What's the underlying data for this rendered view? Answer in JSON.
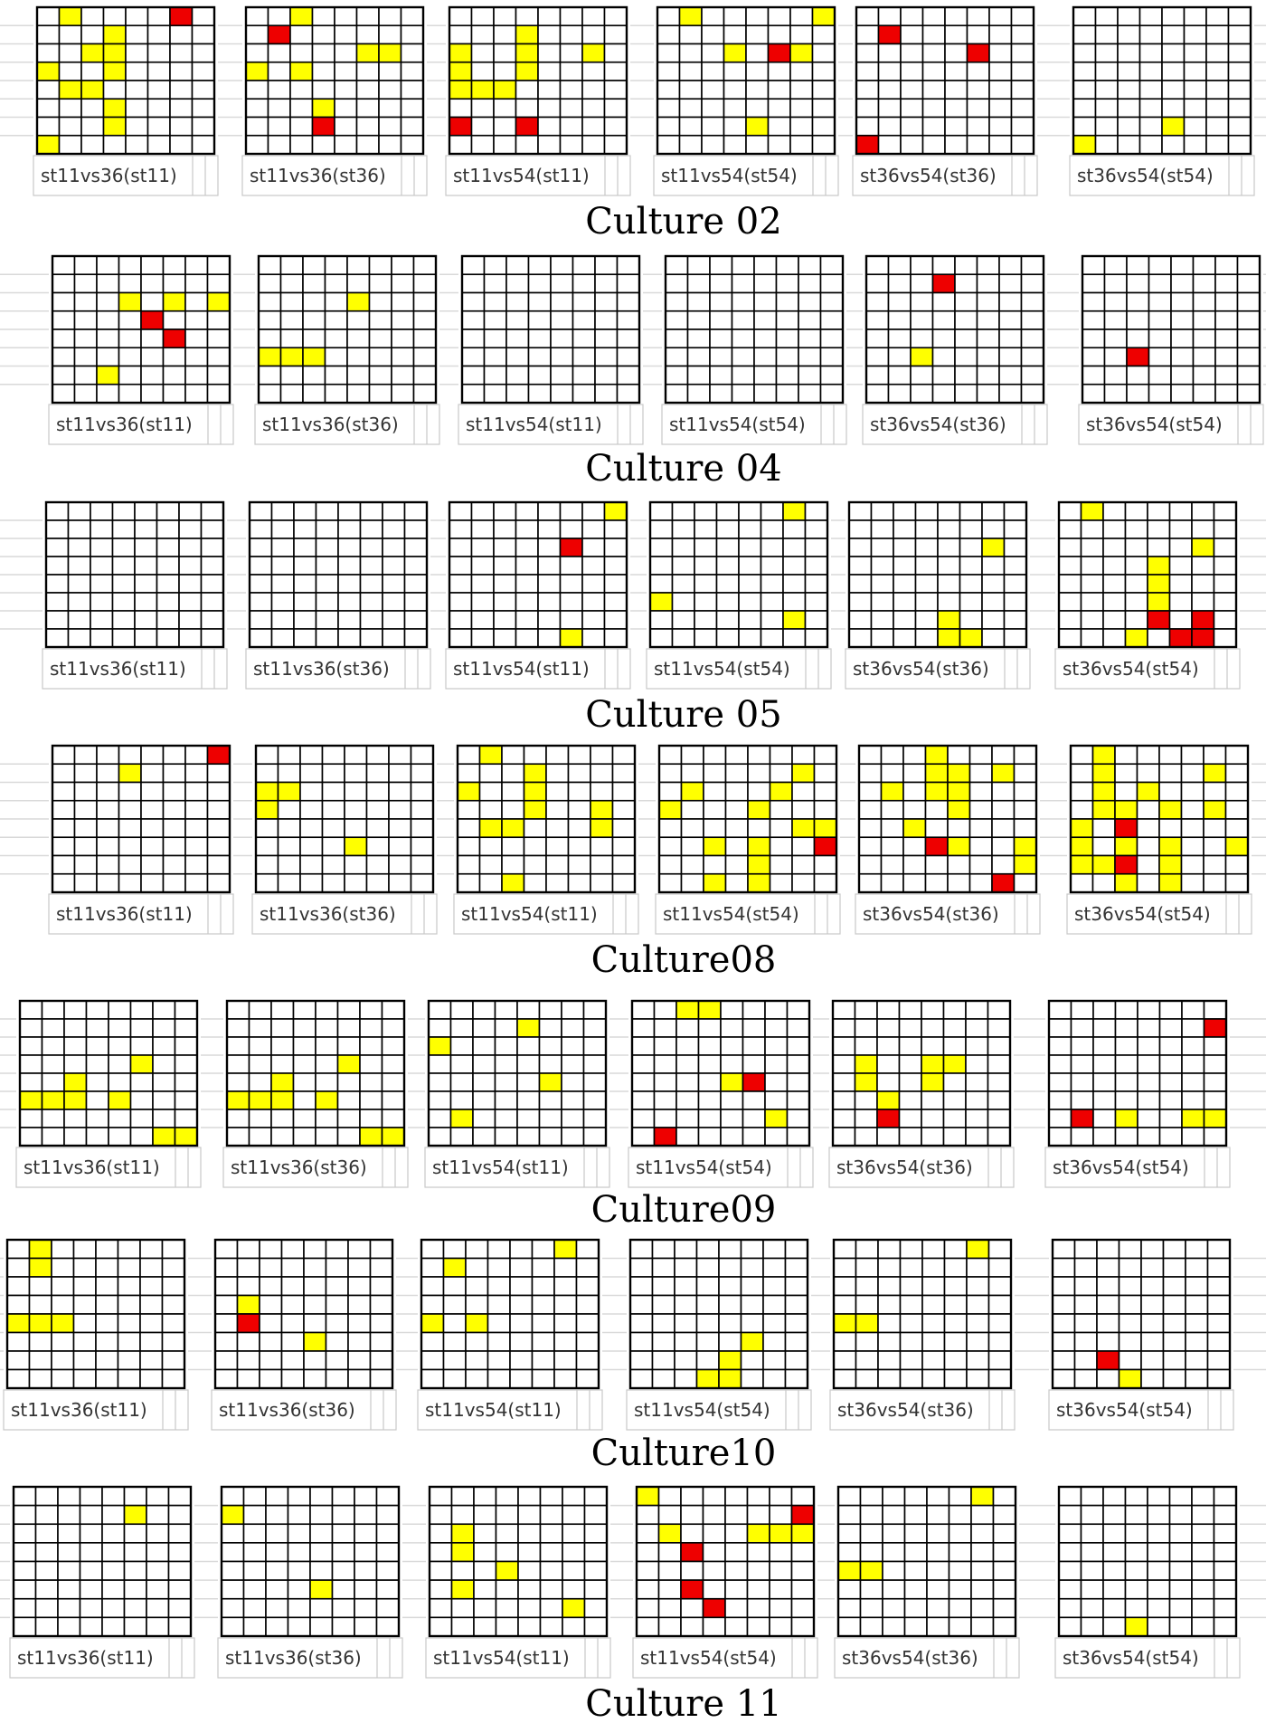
{
  "colors": {
    "empty": "#ffffff",
    "yellow": "#ffff00",
    "red": "#ee0000",
    "grid_line": "#000000",
    "label_border": "#c8c8c8"
  },
  "grid": {
    "rows": 8,
    "cols": 8
  },
  "cultures": [
    {
      "title": "Culture 02",
      "panels": [
        {
          "label": "st11vs36(st11)",
          "yellow": [
            [
              0,
              1
            ],
            [
              1,
              3
            ],
            [
              2,
              2
            ],
            [
              2,
              3
            ],
            [
              3,
              0
            ],
            [
              3,
              3
            ],
            [
              4,
              1
            ],
            [
              4,
              2
            ],
            [
              5,
              3
            ],
            [
              6,
              3
            ],
            [
              7,
              0
            ]
          ],
          "red": [
            [
              0,
              6
            ]
          ]
        },
        {
          "label": "st11vs36(st36)",
          "yellow": [
            [
              0,
              2
            ],
            [
              2,
              5
            ],
            [
              2,
              6
            ],
            [
              3,
              0
            ],
            [
              3,
              2
            ],
            [
              5,
              3
            ]
          ],
          "red": [
            [
              1,
              1
            ],
            [
              6,
              3
            ]
          ]
        },
        {
          "label": "st11vs54(st11)",
          "yellow": [
            [
              1,
              3
            ],
            [
              2,
              0
            ],
            [
              2,
              3
            ],
            [
              2,
              6
            ],
            [
              3,
              0
            ],
            [
              3,
              3
            ],
            [
              4,
              0
            ],
            [
              4,
              1
            ],
            [
              4,
              2
            ]
          ],
          "red": [
            [
              6,
              0
            ],
            [
              6,
              3
            ]
          ]
        },
        {
          "label": "st11vs54(st54)",
          "yellow": [
            [
              0,
              1
            ],
            [
              0,
              7
            ],
            [
              2,
              3
            ],
            [
              2,
              6
            ],
            [
              6,
              4
            ]
          ],
          "red": [
            [
              2,
              5
            ]
          ]
        },
        {
          "label": "st36vs54(st36)",
          "yellow": [],
          "red": [
            [
              1,
              1
            ],
            [
              2,
              5
            ],
            [
              7,
              0
            ]
          ]
        },
        {
          "label": "st36vs54(st54)",
          "yellow": [
            [
              6,
              4
            ],
            [
              7,
              0
            ]
          ],
          "red": []
        }
      ]
    },
    {
      "title": "Culture 04",
      "panels": [
        {
          "label": "st11vs36(st11)",
          "yellow": [
            [
              2,
              3
            ],
            [
              2,
              5
            ],
            [
              2,
              7
            ],
            [
              6,
              2
            ]
          ],
          "red": [
            [
              3,
              4
            ],
            [
              4,
              5
            ]
          ]
        },
        {
          "label": "st11vs36(st36)",
          "yellow": [
            [
              2,
              4
            ],
            [
              5,
              0
            ],
            [
              5,
              1
            ],
            [
              5,
              2
            ]
          ],
          "red": []
        },
        {
          "label": "st11vs54(st11)",
          "yellow": [],
          "red": []
        },
        {
          "label": "st11vs54(st54)",
          "yellow": [],
          "red": []
        },
        {
          "label": "st36vs54(st36)",
          "yellow": [
            [
              5,
              2
            ]
          ],
          "red": [
            [
              1,
              3
            ]
          ]
        },
        {
          "label": "st36vs54(st54)",
          "yellow": [],
          "red": [
            [
              5,
              2
            ]
          ]
        }
      ]
    },
    {
      "title": "Culture 05",
      "panels": [
        {
          "label": "st11vs36(st11)",
          "yellow": [],
          "red": []
        },
        {
          "label": "st11vs36(st36)",
          "yellow": [],
          "red": []
        },
        {
          "label": "st11vs54(st11)",
          "yellow": [
            [
              0,
              7
            ],
            [
              7,
              5
            ]
          ],
          "red": [
            [
              2,
              5
            ]
          ]
        },
        {
          "label": "st11vs54(st54)",
          "yellow": [
            [
              0,
              6
            ],
            [
              5,
              0
            ],
            [
              6,
              6
            ]
          ],
          "red": []
        },
        {
          "label": "st36vs54(st36)",
          "yellow": [
            [
              2,
              6
            ],
            [
              6,
              4
            ],
            [
              7,
              4
            ],
            [
              7,
              5
            ]
          ],
          "red": []
        },
        {
          "label": "st36vs54(st54)",
          "yellow": [
            [
              0,
              1
            ],
            [
              2,
              6
            ],
            [
              3,
              4
            ],
            [
              4,
              4
            ],
            [
              5,
              4
            ],
            [
              7,
              3
            ]
          ],
          "red": [
            [
              6,
              4
            ],
            [
              6,
              6
            ],
            [
              7,
              5
            ],
            [
              7,
              6
            ]
          ]
        }
      ]
    },
    {
      "title": "Culture08",
      "panels": [
        {
          "label": "st11vs36(st11)",
          "yellow": [
            [
              1,
              3
            ]
          ],
          "red": [
            [
              0,
              7
            ]
          ]
        },
        {
          "label": "st11vs36(st36)",
          "yellow": [
            [
              2,
              0
            ],
            [
              2,
              1
            ],
            [
              3,
              0
            ],
            [
              5,
              4
            ]
          ],
          "red": []
        },
        {
          "label": "st11vs54(st11)",
          "yellow": [
            [
              0,
              1
            ],
            [
              1,
              3
            ],
            [
              2,
              0
            ],
            [
              2,
              3
            ],
            [
              3,
              3
            ],
            [
              3,
              6
            ],
            [
              4,
              1
            ],
            [
              4,
              2
            ],
            [
              4,
              6
            ],
            [
              7,
              2
            ]
          ],
          "red": []
        },
        {
          "label": "st11vs54(st54)",
          "yellow": [
            [
              1,
              6
            ],
            [
              2,
              1
            ],
            [
              2,
              5
            ],
            [
              3,
              0
            ],
            [
              3,
              4
            ],
            [
              4,
              6
            ],
            [
              4,
              7
            ],
            [
              5,
              2
            ],
            [
              5,
              4
            ],
            [
              6,
              4
            ],
            [
              7,
              2
            ],
            [
              7,
              4
            ]
          ],
          "red": [
            [
              5,
              7
            ]
          ]
        },
        {
          "label": "st36vs54(st36)",
          "yellow": [
            [
              0,
              3
            ],
            [
              1,
              3
            ],
            [
              1,
              4
            ],
            [
              1,
              6
            ],
            [
              2,
              1
            ],
            [
              2,
              3
            ],
            [
              2,
              4
            ],
            [
              3,
              4
            ],
            [
              4,
              2
            ],
            [
              5,
              4
            ],
            [
              5,
              7
            ],
            [
              6,
              7
            ]
          ],
          "red": [
            [
              5,
              3
            ],
            [
              7,
              6
            ]
          ]
        },
        {
          "label": "st36vs54(st54)",
          "yellow": [
            [
              0,
              1
            ],
            [
              1,
              1
            ],
            [
              1,
              6
            ],
            [
              2,
              1
            ],
            [
              2,
              3
            ],
            [
              3,
              1
            ],
            [
              3,
              2
            ],
            [
              3,
              4
            ],
            [
              3,
              6
            ],
            [
              4,
              0
            ],
            [
              4,
              2
            ],
            [
              5,
              0
            ],
            [
              5,
              2
            ],
            [
              5,
              4
            ],
            [
              5,
              7
            ],
            [
              6,
              0
            ],
            [
              6,
              1
            ],
            [
              6,
              4
            ],
            [
              7,
              2
            ],
            [
              7,
              4
            ]
          ],
          "red": [
            [
              4,
              2
            ],
            [
              6,
              2
            ]
          ]
        }
      ]
    },
    {
      "title": "Culture09",
      "panels": [
        {
          "label": "st11vs36(st11)",
          "yellow": [
            [
              3,
              5
            ],
            [
              4,
              2
            ],
            [
              5,
              0
            ],
            [
              5,
              1
            ],
            [
              5,
              2
            ],
            [
              5,
              4
            ],
            [
              7,
              6
            ],
            [
              7,
              7
            ]
          ],
          "red": []
        },
        {
          "label": "st11vs36(st36)",
          "yellow": [
            [
              3,
              5
            ],
            [
              4,
              2
            ],
            [
              5,
              0
            ],
            [
              5,
              1
            ],
            [
              5,
              2
            ],
            [
              5,
              4
            ],
            [
              7,
              6
            ],
            [
              7,
              7
            ]
          ],
          "red": []
        },
        {
          "label": "st11vs54(st11)",
          "yellow": [
            [
              1,
              4
            ],
            [
              2,
              0
            ],
            [
              4,
              5
            ],
            [
              6,
              1
            ]
          ],
          "red": []
        },
        {
          "label": "st11vs54(st54)",
          "yellow": [
            [
              0,
              2
            ],
            [
              0,
              3
            ],
            [
              4,
              4
            ],
            [
              6,
              6
            ]
          ],
          "red": [
            [
              4,
              5
            ],
            [
              7,
              1
            ]
          ]
        },
        {
          "label": "st36vs54(st36)",
          "yellow": [
            [
              3,
              1
            ],
            [
              3,
              4
            ],
            [
              3,
              5
            ],
            [
              4,
              1
            ],
            [
              4,
              4
            ],
            [
              5,
              2
            ]
          ],
          "red": [
            [
              6,
              2
            ]
          ]
        },
        {
          "label": "st36vs54(st54)",
          "yellow": [
            [
              6,
              3
            ],
            [
              6,
              6
            ],
            [
              6,
              7
            ]
          ],
          "red": [
            [
              1,
              7
            ],
            [
              6,
              1
            ]
          ]
        }
      ]
    },
    {
      "title": "Culture10",
      "panels": [
        {
          "label": "st11vs36(st11)",
          "yellow": [
            [
              0,
              1
            ],
            [
              1,
              1
            ],
            [
              4,
              0
            ],
            [
              4,
              1
            ],
            [
              4,
              2
            ]
          ],
          "red": []
        },
        {
          "label": "st11vs36(st36)",
          "yellow": [
            [
              3,
              1
            ],
            [
              5,
              4
            ]
          ],
          "red": [
            [
              4,
              1
            ]
          ]
        },
        {
          "label": "st11vs54(st11)",
          "yellow": [
            [
              0,
              6
            ],
            [
              1,
              1
            ],
            [
              4,
              0
            ],
            [
              4,
              2
            ]
          ],
          "red": []
        },
        {
          "label": "st11vs54(st54)",
          "yellow": [
            [
              5,
              5
            ],
            [
              6,
              4
            ],
            [
              7,
              3
            ],
            [
              7,
              4
            ]
          ],
          "red": []
        },
        {
          "label": "st36vs54(st36)",
          "yellow": [
            [
              0,
              6
            ],
            [
              4,
              0
            ],
            [
              4,
              1
            ]
          ],
          "red": []
        },
        {
          "label": "st36vs54(st54)",
          "yellow": [
            [
              7,
              3
            ]
          ],
          "red": [
            [
              6,
              2
            ]
          ]
        }
      ]
    },
    {
      "title": "Culture 11",
      "panels": [
        {
          "label": "st11vs36(st11)",
          "yellow": [
            [
              1,
              5
            ]
          ],
          "red": []
        },
        {
          "label": "st11vs36(st36)",
          "yellow": [
            [
              1,
              0
            ],
            [
              5,
              4
            ]
          ],
          "red": []
        },
        {
          "label": "st11vs54(st11)",
          "yellow": [
            [
              2,
              1
            ],
            [
              3,
              1
            ],
            [
              4,
              3
            ],
            [
              5,
              1
            ],
            [
              6,
              6
            ]
          ],
          "red": []
        },
        {
          "label": "st11vs54(st54)",
          "yellow": [
            [
              0,
              0
            ],
            [
              2,
              1
            ],
            [
              2,
              5
            ],
            [
              2,
              6
            ],
            [
              2,
              7
            ]
          ],
          "red": [
            [
              1,
              7
            ],
            [
              3,
              2
            ],
            [
              5,
              2
            ],
            [
              6,
              3
            ]
          ]
        },
        {
          "label": "st36vs54(st36)",
          "yellow": [
            [
              0,
              6
            ],
            [
              4,
              0
            ],
            [
              4,
              1
            ]
          ],
          "red": []
        },
        {
          "label": "st36vs54(st54)",
          "yellow": [
            [
              7,
              3
            ]
          ],
          "red": []
        }
      ]
    }
  ]
}
